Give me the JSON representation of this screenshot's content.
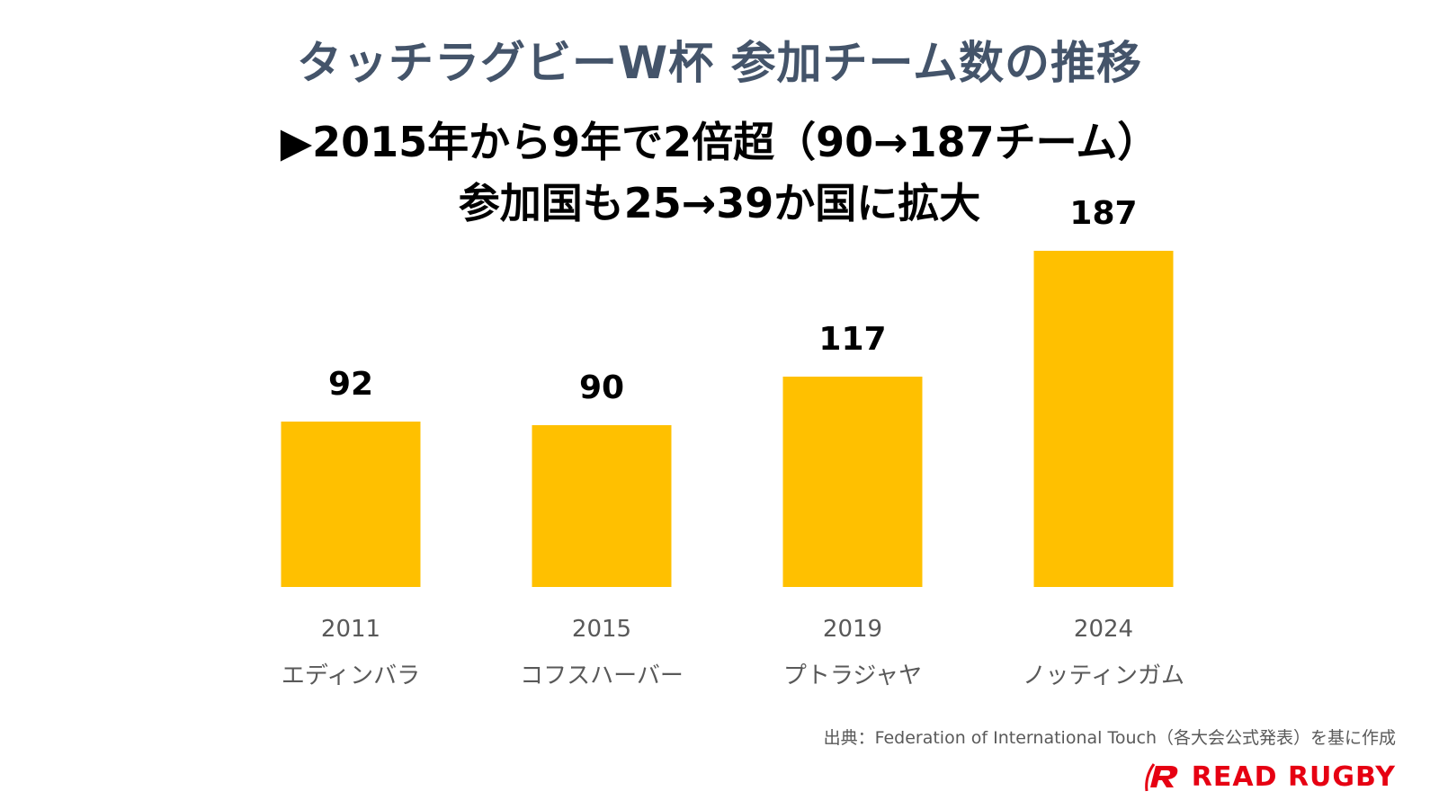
{
  "header": {
    "title": "タッチラグビーW杯 参加チーム数の推移",
    "subtitle_line1": "▶2015年から9年で2倍超（90→187チーム）",
    "subtitle_line2": "参加国も25→39か国に拡大"
  },
  "chart_data": {
    "type": "bar",
    "categories": [
      "2011",
      "2015",
      "2019",
      "2024"
    ],
    "venues": [
      "エディンバラ",
      "コフスハーバー",
      "プトラジャヤ",
      "ノッティンガム"
    ],
    "values": [
      92,
      90,
      117,
      187
    ],
    "title": "",
    "xlabel": "",
    "ylabel": "",
    "ylim": [
      0,
      200
    ],
    "grid": false,
    "data_labels": true,
    "bar_color": "#ffc000"
  },
  "footer": {
    "source": "出典：Federation of International Touch（各大会公式発表）を基に作成",
    "logo_text": "READ RUGBY",
    "logo_color": "#e60012"
  },
  "colors": {
    "title": "#44546a",
    "subtitle": "#000000",
    "bar": "#ffc000"
  }
}
